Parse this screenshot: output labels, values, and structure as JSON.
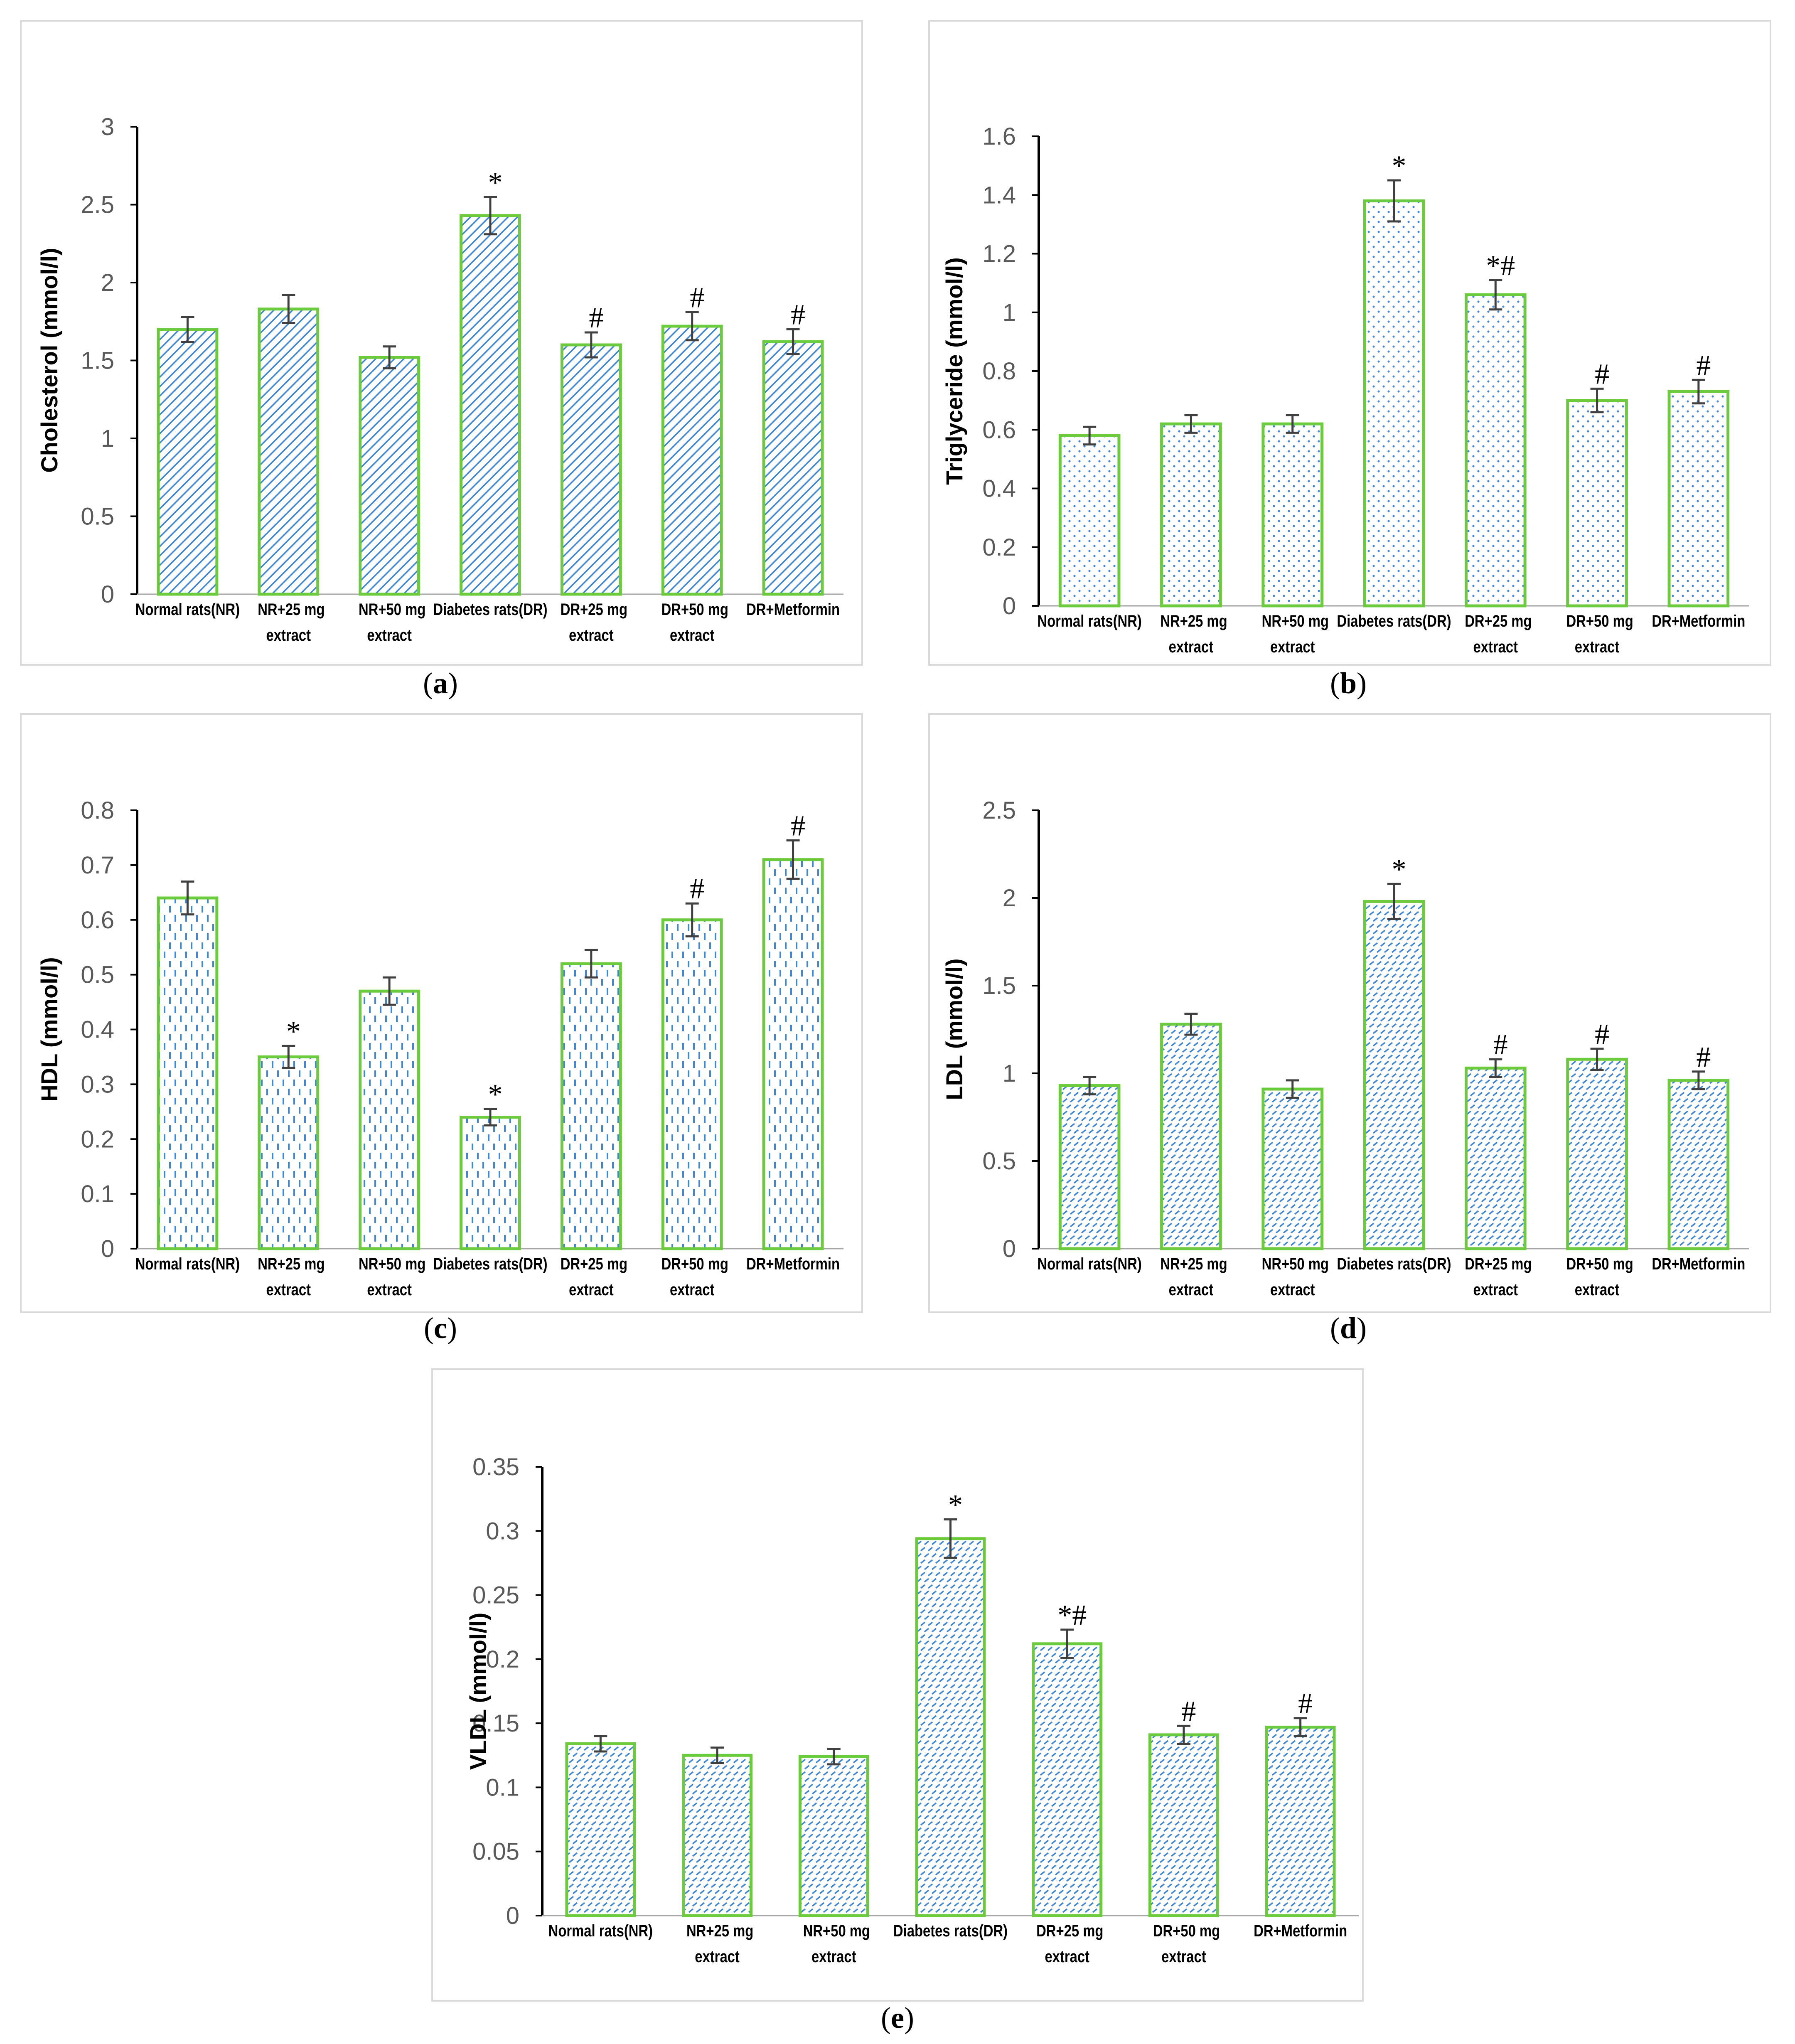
{
  "figure": {
    "panel_labels": [
      "(a)",
      "(b)",
      "(c)",
      "(d)",
      "(e)"
    ]
  },
  "colors": {
    "bar_outline": "#6CCB3C",
    "pattern": "#3F86D4",
    "axis": "#000000",
    "tick_text": "#595959",
    "frame": "#D9D9D9",
    "error_bar": "#404040"
  },
  "chart_data": [
    {
      "type": "bar",
      "panel": "(a)",
      "title": "",
      "xlabel": "",
      "ylabel": "Cholesterol (mmol/l)",
      "ylim": [
        0,
        3
      ],
      "yticks": [
        "0",
        "0.5",
        "1",
        "1.5",
        "2",
        "2.5",
        "3"
      ],
      "categories": [
        [
          "Normal rats(NR)"
        ],
        [
          "NR+25 mg",
          "extract"
        ],
        [
          "NR+50 mg",
          "extract"
        ],
        [
          "Diabetes rats(DR)"
        ],
        [
          "DR+25 mg",
          "extract"
        ],
        [
          "DR+50 mg",
          "extract"
        ],
        [
          "DR+Metformin"
        ]
      ],
      "values": [
        1.7,
        1.83,
        1.52,
        2.43,
        1.6,
        1.72,
        1.62
      ],
      "errors": [
        0.08,
        0.09,
        0.07,
        0.12,
        0.08,
        0.09,
        0.08
      ],
      "annotations": [
        "",
        "",
        "",
        "*",
        "#",
        "#",
        "#"
      ],
      "pattern": "diagonal",
      "y_axis_line": "dark"
    },
    {
      "type": "bar",
      "panel": "(b)",
      "title": "",
      "xlabel": "",
      "ylabel": "Triglyceride (mmol/l)",
      "ylim": [
        0,
        1.6
      ],
      "yticks": [
        "0",
        "0.2",
        "0.4",
        "0.6",
        "0.8",
        "1",
        "1.2",
        "1.4",
        "1.6"
      ],
      "categories": [
        [
          "Normal rats(NR)"
        ],
        [
          "NR+25 mg",
          "extract"
        ],
        [
          "NR+50 mg",
          "extract"
        ],
        [
          "Diabetes rats(DR)"
        ],
        [
          "DR+25 mg",
          "extract"
        ],
        [
          "DR+50 mg",
          "extract"
        ],
        [
          "DR+Metformin"
        ]
      ],
      "values": [
        0.58,
        0.62,
        0.62,
        1.38,
        1.06,
        0.7,
        0.73
      ],
      "errors": [
        0.03,
        0.03,
        0.03,
        0.07,
        0.05,
        0.04,
        0.04
      ],
      "annotations": [
        "",
        "",
        "",
        "*",
        "*#",
        "#",
        "#"
      ],
      "pattern": "dots",
      "y_axis_line": "dark"
    },
    {
      "type": "bar",
      "panel": "(c)",
      "title": "",
      "xlabel": "",
      "ylabel": "HDL (mmol/l)",
      "ylim": [
        0,
        0.8
      ],
      "yticks": [
        "0",
        "0.1",
        "0.2",
        "0.3",
        "0.4",
        "0.5",
        "0.6",
        "0.7",
        "0.8"
      ],
      "categories": [
        [
          "Normal rats(NR)"
        ],
        [
          "NR+25 mg",
          "extract"
        ],
        [
          "NR+50 mg",
          "extract"
        ],
        [
          "Diabetes rats(DR)"
        ],
        [
          "DR+25 mg",
          "extract"
        ],
        [
          "DR+50 mg",
          "extract"
        ],
        [
          "DR+Metformin"
        ]
      ],
      "values": [
        0.64,
        0.35,
        0.47,
        0.24,
        0.52,
        0.6,
        0.71
      ],
      "errors": [
        0.03,
        0.02,
        0.025,
        0.015,
        0.025,
        0.03,
        0.035
      ],
      "annotations": [
        "",
        "*",
        "",
        "*",
        "",
        "#",
        "#"
      ],
      "pattern": "vdash",
      "y_axis_line": "dark"
    },
    {
      "type": "bar",
      "panel": "(d)",
      "title": "",
      "xlabel": "",
      "ylabel": "LDL (mmol/l)",
      "ylim": [
        0,
        2.5
      ],
      "yticks": [
        "0",
        "0.5",
        "1",
        "1.5",
        "2",
        "2.5"
      ],
      "categories": [
        [
          "Normal rats(NR)"
        ],
        [
          "NR+25 mg",
          "extract"
        ],
        [
          "NR+50 mg",
          "extract"
        ],
        [
          "Diabetes rats(DR)"
        ],
        [
          "DR+25 mg",
          "extract"
        ],
        [
          "DR+50 mg",
          "extract"
        ],
        [
          "DR+Metformin"
        ]
      ],
      "values": [
        0.93,
        1.28,
        0.91,
        1.98,
        1.03,
        1.08,
        0.96
      ],
      "errors": [
        0.05,
        0.06,
        0.05,
        0.1,
        0.05,
        0.06,
        0.05
      ],
      "annotations": [
        "",
        "",
        "",
        "*",
        "#",
        "#",
        "#"
      ],
      "pattern": "zigzag",
      "y_axis_line": "dark"
    },
    {
      "type": "bar",
      "panel": "(e)",
      "title": "",
      "xlabel": "",
      "ylabel": "VLDL (mmol/l)",
      "ylim": [
        0,
        0.35
      ],
      "yticks": [
        "0",
        "0.05",
        "0.1",
        "0.15",
        "0.2",
        "0.25",
        "0.3",
        "0.35"
      ],
      "categories": [
        [
          "Normal rats(NR)"
        ],
        [
          "NR+25 mg",
          "extract"
        ],
        [
          "NR+50 mg",
          "extract"
        ],
        [
          "Diabetes rats(DR)"
        ],
        [
          "DR+25 mg",
          "extract"
        ],
        [
          "DR+50 mg",
          "extract"
        ],
        [
          "DR+Metformin"
        ]
      ],
      "values": [
        0.134,
        0.125,
        0.124,
        0.294,
        0.212,
        0.141,
        0.147
      ],
      "errors": [
        0.006,
        0.006,
        0.006,
        0.015,
        0.011,
        0.007,
        0.007
      ],
      "annotations": [
        "",
        "",
        "",
        "*",
        "*#",
        "#",
        "#"
      ],
      "pattern": "zigzag",
      "y_axis_line": "dark"
    }
  ]
}
